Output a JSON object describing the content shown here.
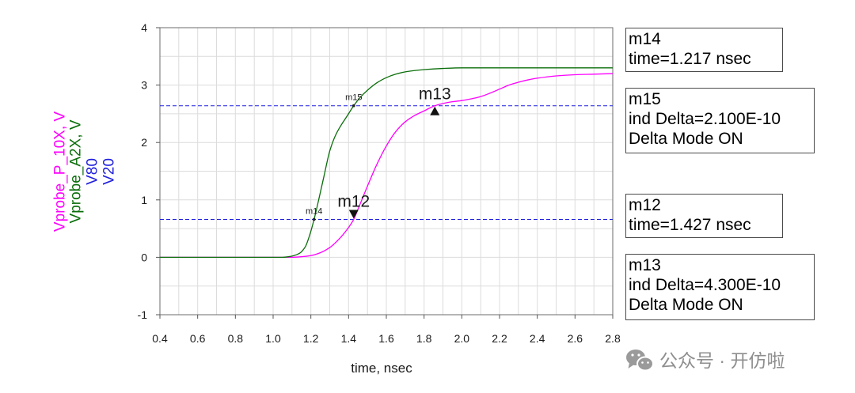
{
  "chart_data": {
    "type": "line",
    "xlabel": "time, nsec",
    "xlim": [
      0.4,
      2.8
    ],
    "ylim": [
      -1,
      4
    ],
    "xticks": [
      "0.4",
      "0.6",
      "0.8",
      "1.0",
      "1.2",
      "1.4",
      "1.6",
      "1.8",
      "2.0",
      "2.2",
      "2.4",
      "2.6",
      "2.8"
    ],
    "yticks": [
      "4",
      "3",
      "2",
      "1",
      "0",
      "-1"
    ],
    "grid": true,
    "series": [
      {
        "name": "Vprobe_P_10X, V",
        "color": "#ff00ff",
        "x": [
          0.4,
          1.0,
          1.1,
          1.15,
          1.2,
          1.25,
          1.3,
          1.35,
          1.4,
          1.427,
          1.45,
          1.5,
          1.55,
          1.6,
          1.65,
          1.7,
          1.75,
          1.8,
          1.857,
          1.9,
          1.95,
          2.0,
          2.05,
          2.1,
          2.15,
          2.2,
          2.25,
          2.3,
          2.35,
          2.4,
          2.5,
          2.6,
          2.7,
          2.8
        ],
        "y": [
          0,
          0,
          0,
          0.01,
          0.03,
          0.08,
          0.17,
          0.32,
          0.52,
          0.66,
          0.84,
          1.24,
          1.62,
          1.94,
          2.19,
          2.36,
          2.47,
          2.55,
          2.64,
          2.68,
          2.71,
          2.73,
          2.76,
          2.8,
          2.86,
          2.93,
          3.0,
          3.05,
          3.09,
          3.12,
          3.16,
          3.18,
          3.19,
          3.2
        ]
      },
      {
        "name": "Vprobe_A2X, V",
        "color": "#0b6e0b",
        "x": [
          0.4,
          0.9,
          1.0,
          1.05,
          1.08,
          1.11,
          1.14,
          1.17,
          1.195,
          1.217,
          1.24,
          1.27,
          1.3,
          1.33,
          1.36,
          1.39,
          1.427,
          1.46,
          1.5,
          1.55,
          1.6,
          1.65,
          1.7,
          1.8,
          1.9,
          2.0,
          2.2,
          2.4,
          2.6,
          2.8
        ],
        "y": [
          0,
          0,
          0,
          0,
          0.01,
          0.03,
          0.07,
          0.18,
          0.4,
          0.66,
          0.98,
          1.42,
          1.85,
          2.12,
          2.3,
          2.45,
          2.64,
          2.78,
          2.91,
          3.04,
          3.13,
          3.19,
          3.23,
          3.27,
          3.29,
          3.3,
          3.3,
          3.3,
          3.3,
          3.3
        ]
      }
    ],
    "reference_lines": [
      {
        "name": "V80",
        "y": 2.64,
        "color": "#1f1fdd",
        "style": "dashed"
      },
      {
        "name": "V20",
        "y": 0.66,
        "color": "#1f1fdd",
        "style": "dashed"
      }
    ],
    "markers": [
      {
        "name": "m14",
        "x": 1.217,
        "y": 0.66,
        "symbol": "dot"
      },
      {
        "name": "m15",
        "x": 1.427,
        "y": 2.64,
        "symbol": "dot"
      },
      {
        "name": "m12",
        "x": 1.427,
        "y": 0.66,
        "symbol": "down-triangle"
      },
      {
        "name": "m13",
        "x": 1.857,
        "y": 2.64,
        "symbol": "up-triangle"
      }
    ],
    "readouts": [
      {
        "lines": [
          "m14",
          "time=1.217 nsec"
        ]
      },
      {
        "lines": [
          "m15",
          "ind Delta=2.100E-10",
          "Delta Mode ON"
        ]
      },
      {
        "lines": [
          "m12",
          "time=1.427 nsec"
        ]
      },
      {
        "lines": [
          "m13",
          "ind Delta=4.300E-10",
          "Delta Mode ON"
        ]
      }
    ]
  },
  "watermark": {
    "icon": "wechat-icon",
    "text": "公众号 · 开仿啦"
  }
}
